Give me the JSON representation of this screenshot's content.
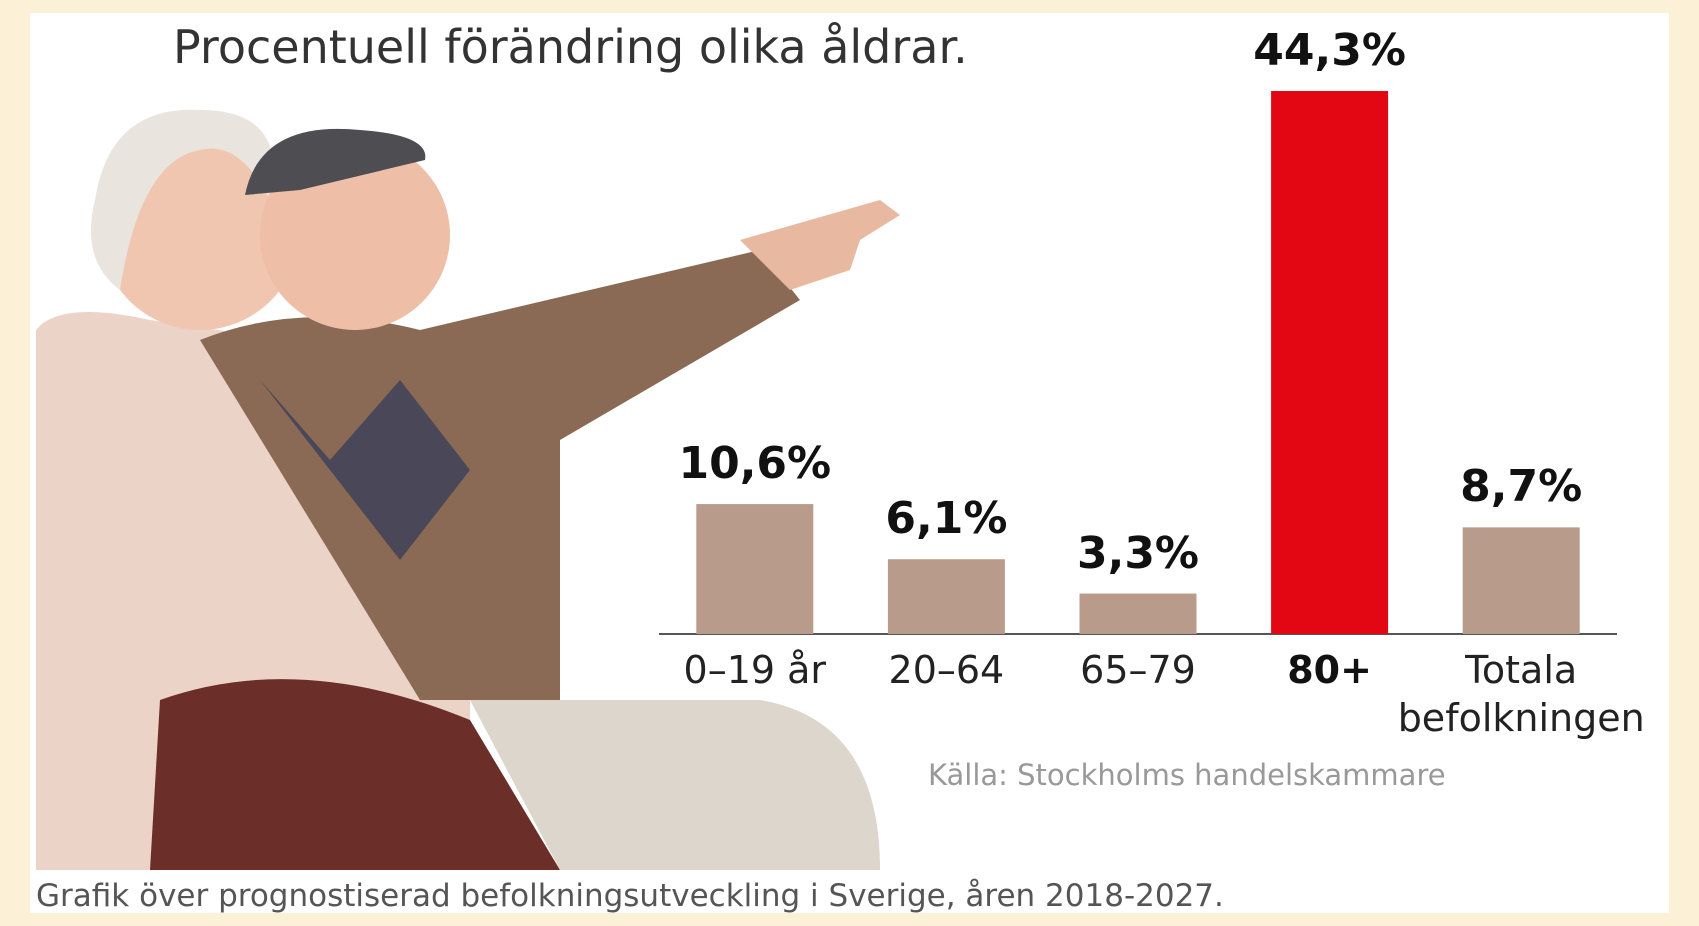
{
  "chart_data": {
    "type": "bar",
    "title": "Procentuell förändring olika åldrar.",
    "categories": [
      "0–19 år",
      "20–64",
      "65–79",
      "80+",
      "Totala befolkningen"
    ],
    "values": [
      10.6,
      6.1,
      3.3,
      44.3,
      8.7
    ],
    "value_labels": [
      "10,6%",
      "6,1%",
      "3,3%",
      "44,3%",
      "8,7%"
    ],
    "colors": [
      "#b89b8b",
      "#b89b8b",
      "#b89b8b",
      "#e30613",
      "#b89b8b"
    ],
    "source": "Källa: Stockholms handelskammare"
  },
  "caption": "Grafik över prognostiserad befolkningsutveckling i Sverige, åren 2018-2027."
}
